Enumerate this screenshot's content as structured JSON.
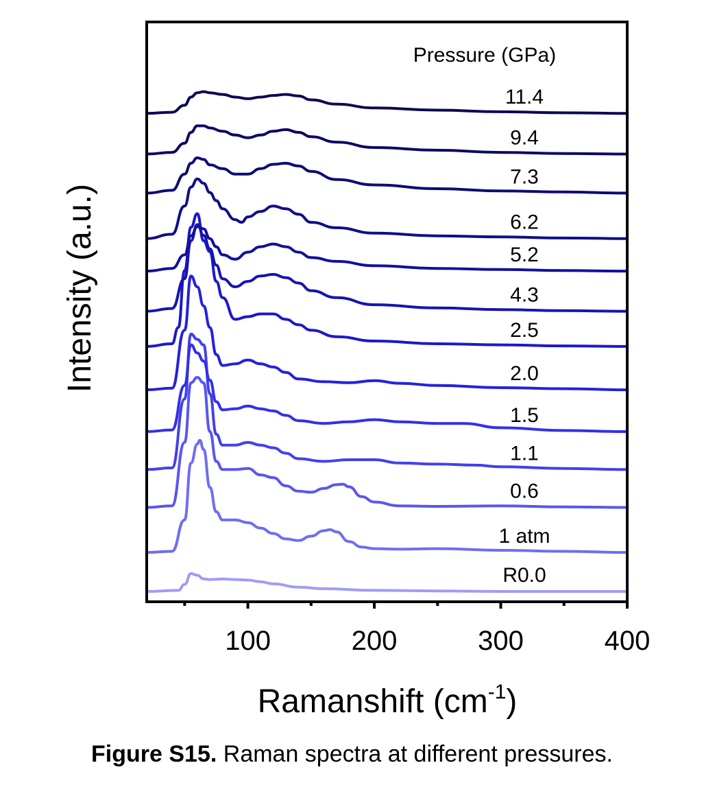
{
  "chart_data": {
    "type": "line",
    "title": "",
    "xlabel": "Ramanshift",
    "xlabel_unit_base": "cm",
    "xlabel_unit_exp": "-1",
    "ylabel": "Intensity (a.u.)",
    "xlim": [
      20,
      400
    ],
    "xticks": [
      100,
      200,
      300,
      400
    ],
    "x_minor_ticks": [
      50,
      150,
      250,
      350
    ],
    "grid": false,
    "legend_title": "Pressure (GPa)",
    "legend_placement": "right, next to each curve",
    "stacked_offset": true,
    "series": [
      {
        "name": "R0.0",
        "color": "#9f9cf6",
        "baseline": 0.0,
        "x": [
          20,
          45,
          50,
          55,
          60,
          65,
          70,
          80,
          90,
          100,
          110,
          120,
          140,
          160,
          200,
          250,
          300,
          350,
          400
        ],
        "y": [
          0.0,
          0.02,
          0.13,
          0.33,
          0.3,
          0.23,
          0.22,
          0.23,
          0.22,
          0.21,
          0.18,
          0.14,
          0.08,
          0.05,
          0.02,
          0.01,
          0.0,
          0.0,
          0.0
        ]
      },
      {
        "name": "1 atm",
        "color": "#6f6cf2",
        "baseline": 0.72,
        "x": [
          20,
          40,
          50,
          55,
          60,
          62,
          65,
          70,
          75,
          80,
          90,
          100,
          110,
          120,
          130,
          140,
          150,
          160,
          165,
          170,
          180,
          190,
          200,
          220,
          250,
          300,
          350,
          400
        ],
        "y": [
          0.0,
          0.02,
          0.6,
          1.65,
          2.0,
          2.07,
          1.9,
          1.2,
          0.75,
          0.6,
          0.6,
          0.55,
          0.45,
          0.35,
          0.25,
          0.22,
          0.3,
          0.4,
          0.42,
          0.38,
          0.2,
          0.1,
          0.07,
          0.06,
          0.07,
          0.04,
          0.02,
          0.0
        ]
      },
      {
        "name": "0.6",
        "color": "#5956ef",
        "baseline": 1.55,
        "x": [
          20,
          40,
          50,
          55,
          60,
          65,
          70,
          75,
          80,
          90,
          100,
          110,
          120,
          130,
          140,
          150,
          160,
          170,
          175,
          180,
          190,
          200,
          220,
          250,
          300,
          350,
          400
        ],
        "y": [
          0.0,
          0.03,
          1.2,
          2.3,
          2.4,
          2.3,
          1.4,
          0.85,
          0.7,
          0.7,
          0.72,
          0.6,
          0.55,
          0.4,
          0.3,
          0.28,
          0.35,
          0.42,
          0.43,
          0.38,
          0.2,
          0.1,
          0.03,
          0.02,
          0.03,
          0.01,
          0.0
        ]
      },
      {
        "name": "1.1",
        "color": "#4340ec",
        "baseline": 2.25,
        "x": [
          20,
          40,
          50,
          55,
          60,
          65,
          70,
          75,
          80,
          90,
          100,
          110,
          120,
          130,
          140,
          160,
          180,
          200,
          220,
          250,
          280,
          300,
          350,
          400
        ],
        "y": [
          0.0,
          0.03,
          1.3,
          2.5,
          2.4,
          2.3,
          1.4,
          0.65,
          0.45,
          0.45,
          0.5,
          0.45,
          0.4,
          0.3,
          0.2,
          0.15,
          0.18,
          0.18,
          0.12,
          0.1,
          0.08,
          0.05,
          0.02,
          0.0
        ]
      },
      {
        "name": "1.5",
        "color": "#3330e9",
        "baseline": 2.95,
        "x": [
          20,
          40,
          50,
          55,
          60,
          65,
          70,
          75,
          80,
          90,
          100,
          110,
          120,
          130,
          140,
          160,
          180,
          200,
          220,
          250,
          270,
          300,
          350,
          400
        ],
        "y": [
          0.0,
          0.03,
          0.85,
          1.6,
          1.45,
          1.3,
          0.95,
          0.55,
          0.4,
          0.42,
          0.47,
          0.42,
          0.38,
          0.3,
          0.2,
          0.15,
          0.18,
          0.22,
          0.18,
          0.15,
          0.15,
          0.07,
          0.02,
          0.0
        ]
      },
      {
        "name": "2.0",
        "color": "#2421dd",
        "baseline": 3.72,
        "x": [
          20,
          40,
          50,
          55,
          60,
          65,
          70,
          75,
          80,
          90,
          100,
          110,
          120,
          130,
          140,
          160,
          180,
          200,
          220,
          250,
          300,
          350,
          400
        ],
        "y": [
          0.0,
          0.03,
          1.1,
          2.1,
          1.9,
          1.55,
          1.15,
          0.65,
          0.45,
          0.48,
          0.55,
          0.48,
          0.42,
          0.32,
          0.2,
          0.15,
          0.13,
          0.17,
          0.12,
          0.08,
          0.04,
          0.02,
          0.0
        ]
      },
      {
        "name": "2.5",
        "color": "#1c19c6",
        "baseline": 4.52,
        "x": [
          20,
          40,
          45,
          50,
          55,
          60,
          65,
          70,
          75,
          80,
          90,
          100,
          110,
          120,
          130,
          140,
          150,
          170,
          200,
          250,
          300,
          350,
          400
        ],
        "y": [
          0.0,
          0.05,
          0.35,
          1.4,
          2.2,
          2.45,
          1.95,
          1.75,
          1.2,
          0.9,
          0.5,
          0.55,
          0.6,
          0.6,
          0.5,
          0.4,
          0.3,
          0.18,
          0.1,
          0.05,
          0.03,
          0.01,
          0.0
        ]
      },
      {
        "name": "4.3",
        "color": "#1714b0",
        "baseline": 5.17,
        "x": [
          20,
          40,
          50,
          55,
          60,
          65,
          70,
          75,
          80,
          90,
          100,
          110,
          120,
          130,
          140,
          150,
          170,
          200,
          250,
          300,
          350,
          400
        ],
        "y": [
          0.0,
          0.05,
          0.6,
          1.3,
          1.6,
          1.4,
          1.15,
          0.85,
          0.6,
          0.45,
          0.55,
          0.65,
          0.68,
          0.62,
          0.52,
          0.38,
          0.25,
          0.12,
          0.06,
          0.03,
          0.01,
          0.0
        ]
      },
      {
        "name": "5.2",
        "color": "#13109b",
        "baseline": 5.91,
        "x": [
          20,
          40,
          50,
          55,
          60,
          65,
          70,
          75,
          80,
          90,
          100,
          110,
          120,
          130,
          140,
          150,
          170,
          200,
          250,
          300,
          350,
          400
        ],
        "y": [
          0.0,
          0.05,
          0.3,
          0.65,
          0.82,
          0.78,
          0.6,
          0.45,
          0.3,
          0.22,
          0.35,
          0.45,
          0.5,
          0.45,
          0.35,
          0.25,
          0.18,
          0.1,
          0.05,
          0.03,
          0.01,
          0.0
        ]
      },
      {
        "name": "6.2",
        "color": "#100e86",
        "baseline": 6.51,
        "x": [
          20,
          40,
          50,
          55,
          60,
          65,
          70,
          75,
          80,
          90,
          95,
          100,
          110,
          120,
          130,
          140,
          150,
          170,
          200,
          250,
          300,
          350,
          400
        ],
        "y": [
          0.0,
          0.08,
          0.6,
          0.95,
          1.1,
          1.02,
          0.85,
          0.7,
          0.55,
          0.35,
          0.3,
          0.4,
          0.5,
          0.6,
          0.55,
          0.45,
          0.3,
          0.2,
          0.1,
          0.05,
          0.03,
          0.01,
          0.0
        ]
      },
      {
        "name": "7.3",
        "color": "#0d0b74",
        "baseline": 7.35,
        "x": [
          20,
          40,
          50,
          55,
          60,
          65,
          70,
          80,
          90,
          100,
          110,
          120,
          130,
          140,
          150,
          170,
          200,
          250,
          300,
          350,
          400
        ],
        "y": [
          0.0,
          0.05,
          0.35,
          0.55,
          0.65,
          0.62,
          0.52,
          0.45,
          0.35,
          0.35,
          0.45,
          0.53,
          0.55,
          0.5,
          0.4,
          0.25,
          0.15,
          0.08,
          0.04,
          0.02,
          0.0
        ]
      },
      {
        "name": "9.4",
        "color": "#0c0a63",
        "baseline": 8.07,
        "x": [
          20,
          40,
          50,
          55,
          60,
          65,
          70,
          80,
          90,
          100,
          110,
          120,
          130,
          140,
          150,
          170,
          200,
          250,
          300,
          350,
          400
        ],
        "y": [
          0.0,
          0.03,
          0.2,
          0.4,
          0.52,
          0.52,
          0.48,
          0.42,
          0.35,
          0.3,
          0.35,
          0.42,
          0.45,
          0.4,
          0.32,
          0.22,
          0.12,
          0.07,
          0.03,
          0.01,
          0.0
        ]
      },
      {
        "name": "11.4",
        "color": "#0b0a52",
        "baseline": 8.82,
        "x": [
          20,
          40,
          50,
          55,
          60,
          65,
          70,
          80,
          90,
          100,
          110,
          120,
          130,
          140,
          150,
          170,
          200,
          250,
          300,
          350,
          400
        ],
        "y": [
          0.0,
          0.02,
          0.15,
          0.3,
          0.38,
          0.4,
          0.38,
          0.35,
          0.3,
          0.27,
          0.3,
          0.33,
          0.35,
          0.32,
          0.25,
          0.17,
          0.1,
          0.06,
          0.03,
          0.01,
          0.0
        ]
      }
    ]
  },
  "caption": {
    "label": "Figure  S15.",
    "text": " Raman spectra at different pressures."
  }
}
